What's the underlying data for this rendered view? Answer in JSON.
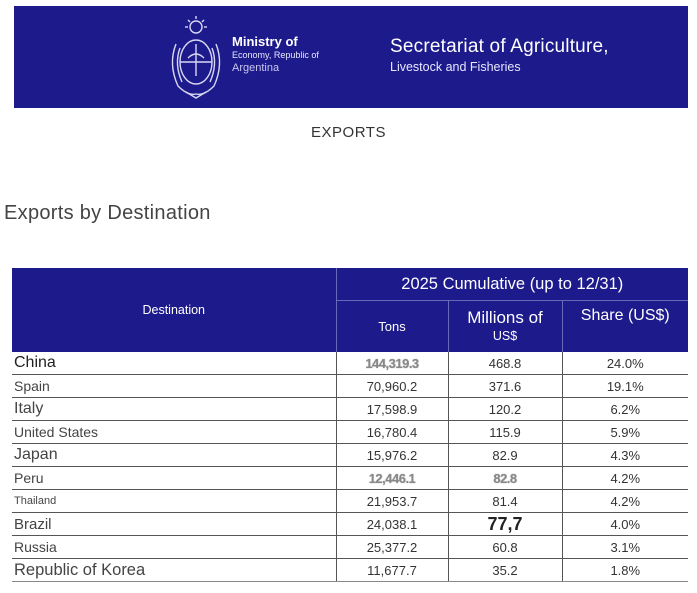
{
  "header": {
    "seal_icon": "argentina-coat-of-arms-icon",
    "ministry_line1": "Ministry of",
    "ministry_line2": "Economy, Republic of",
    "ministry_line3": "Argentina",
    "secretariat_line1": "Secretariat of Agriculture,",
    "secretariat_line2": "Livestock and Fisheries",
    "background_color": "#1d1a8c"
  },
  "page_heading": "EXPORTS",
  "section_title": "Exports by Destination",
  "table": {
    "col_destination": "Destination",
    "group_header": "2025 Cumulative (up to 12/31)",
    "col_tons": "Tons",
    "col_millions_line1": "Millions of",
    "col_millions_line2": "US$",
    "col_share": "Share (US$)",
    "rows": [
      {
        "destination": "China",
        "tons": "144,319.3",
        "millions_usd": "468.8",
        "share": "24.0%"
      },
      {
        "destination": "Spain",
        "tons": "70,960.2",
        "millions_usd": "371.6",
        "share": "19.1%"
      },
      {
        "destination": "Italy",
        "tons": "17,598.9",
        "millions_usd": "120.2",
        "share": "6.2%"
      },
      {
        "destination": "United States",
        "tons": "16,780.4",
        "millions_usd": "115.9",
        "share": "5.9%"
      },
      {
        "destination": "Japan",
        "tons": "15,976.2",
        "millions_usd": "82.9",
        "share": "4.3%"
      },
      {
        "destination": "Peru",
        "tons": "12,446.1",
        "millions_usd": "82.8",
        "share": "4.2%"
      },
      {
        "destination": "Thailand",
        "tons": "21,953.7",
        "millions_usd": "81.4",
        "share": "4.2%"
      },
      {
        "destination": "Brazil",
        "tons": "24,038.1",
        "millions_usd": "77,7",
        "share": "4.0%"
      },
      {
        "destination": "Russia",
        "tons": "25,377.2",
        "millions_usd": "60.8",
        "share": "3.1%"
      },
      {
        "destination": "Republic of Korea",
        "tons": "11,677.7",
        "millions_usd": "35.2",
        "share": "1.8%"
      }
    ]
  }
}
